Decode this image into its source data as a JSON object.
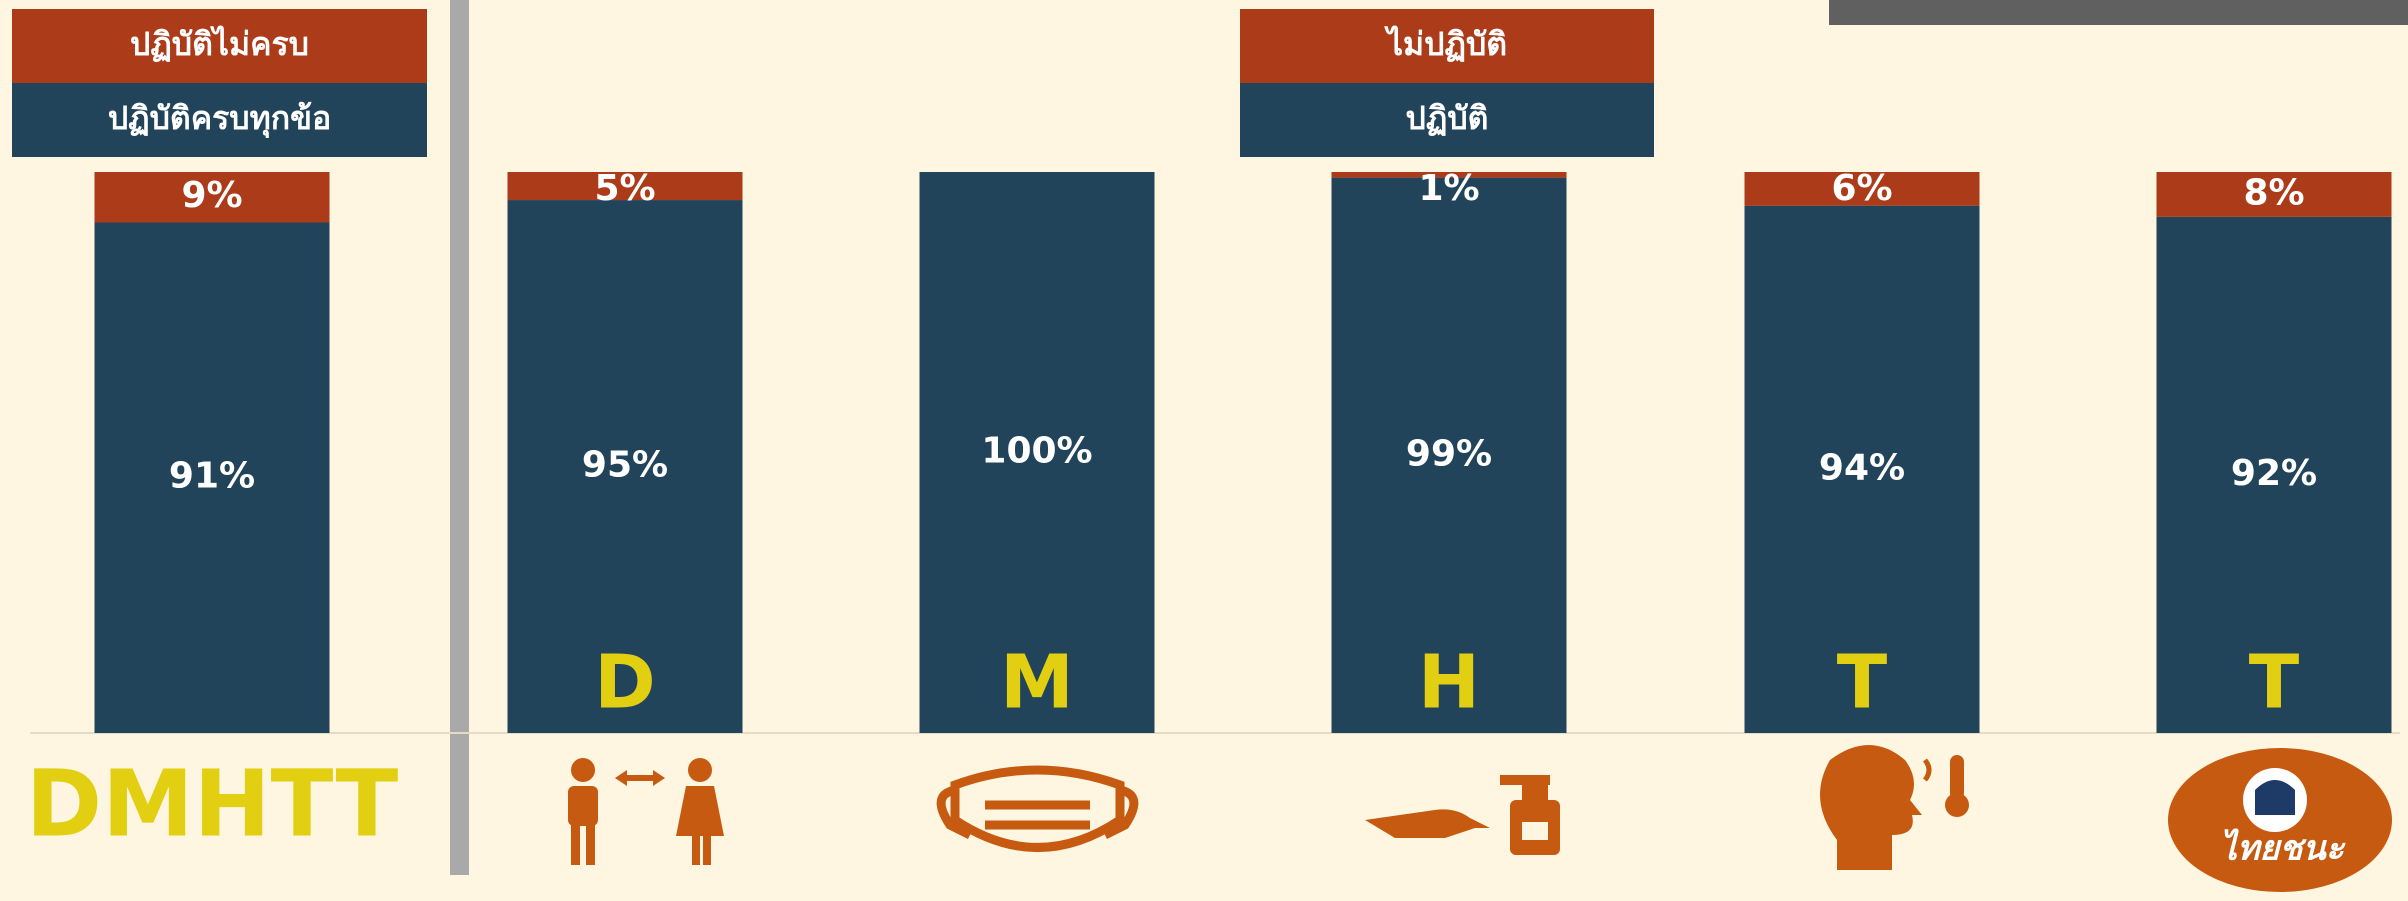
{
  "chart_data": [
    {
      "type": "stacked_bar",
      "categories": [
        "DMHTT"
      ],
      "ylim": [
        0,
        100
      ],
      "series": [
        {
          "name": "ปฏิบัติครบทุกข้อ",
          "color": "#21445a",
          "values": [
            91
          ],
          "value_labels": [
            "91%"
          ]
        },
        {
          "name": "ปฏิบัติไม่ครบ",
          "color": "#ab3b19",
          "values": [
            9
          ],
          "value_labels": [
            "9%"
          ]
        }
      ]
    },
    {
      "type": "stacked_bar",
      "categories": [
        "D",
        "M",
        "H",
        "T",
        "T"
      ],
      "ylim": [
        0,
        100
      ],
      "series": [
        {
          "name": "ปฏิบัติ",
          "color": "#21445a",
          "values": [
            95,
            100,
            99,
            94,
            92
          ],
          "value_labels": [
            "95%",
            "100%",
            "99%",
            "94%",
            "92%"
          ]
        },
        {
          "name": "ไม่ปฏิบัติ",
          "color": "#ab3b19",
          "values": [
            5,
            0,
            1,
            6,
            8
          ],
          "value_labels": [
            "5%",
            null,
            "1%",
            "6%",
            "8%"
          ]
        }
      ]
    }
  ],
  "logo_text": "ไทยชนะ"
}
